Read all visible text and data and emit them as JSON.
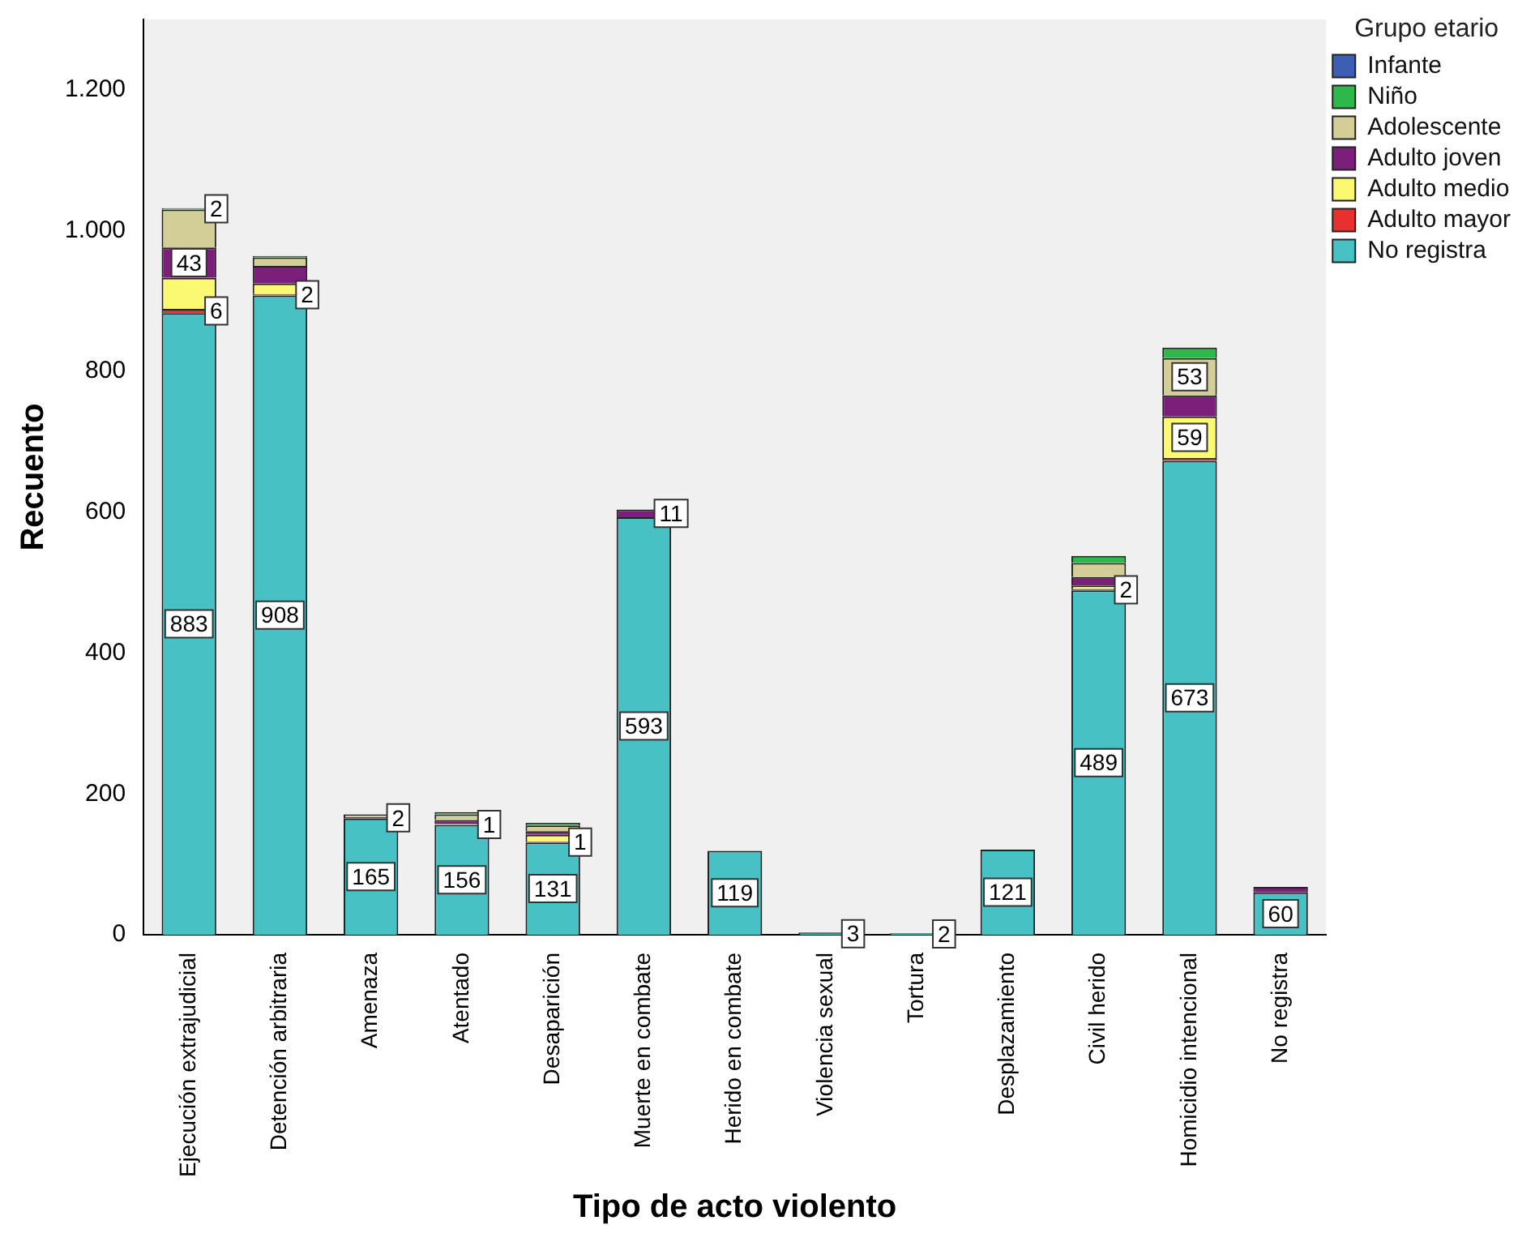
{
  "chart_data": {
    "type": "bar",
    "stacked": true,
    "xlabel": "Tipo de acto violento",
    "ylabel": "Recuento",
    "legend_title": "Grupo etario",
    "legend": "top right",
    "grid": false,
    "categories": [
      "Ejecución extrajudicial",
      "Detención arbitraria",
      "Amenaza",
      "Atentado",
      "Desaparición",
      "Muerte en combate",
      "Herido en combate",
      "Violencia sexual",
      "Tortura",
      "Desplazamiento",
      "Civil herido",
      "Homicidio intencional",
      "No registra"
    ],
    "ylim": [
      0,
      1300
    ],
    "yticks": [
      0,
      200,
      400,
      600,
      800,
      {
        "value": 1000,
        "label": "1.000"
      },
      {
        "value": 1200,
        "label": "1.200"
      }
    ],
    "series": [
      {
        "name": "No registra",
        "color": "#47c1c4",
        "values": [
          883,
          908,
          165,
          156,
          131,
          593,
          119,
          3,
          2,
          121,
          489,
          673,
          60
        ],
        "value_labels": [
          "883",
          "908",
          "165",
          "156",
          "131",
          "593",
          "119",
          "3",
          "2",
          "121",
          "489",
          "673",
          "60"
        ]
      },
      {
        "name": "Adulto mayor",
        "color": "#e8302f",
        "values": [
          6,
          2,
          0,
          0,
          1,
          0,
          0,
          0,
          0,
          0,
          2,
          4,
          0
        ],
        "value_labels": [
          "6",
          "2",
          null,
          null,
          "1",
          null,
          null,
          null,
          null,
          null,
          "2",
          null,
          null
        ]
      },
      {
        "name": "Adulto medio",
        "color": "#fbf871",
        "values": [
          44,
          15,
          0,
          1,
          10,
          0,
          0,
          0,
          0,
          0,
          5,
          59,
          0
        ],
        "value_labels": [
          null,
          null,
          null,
          "1",
          null,
          null,
          null,
          null,
          null,
          null,
          null,
          "59",
          null
        ]
      },
      {
        "name": "Adulto joven",
        "color": "#7b1f7a",
        "values": [
          43,
          25,
          2,
          6,
          5,
          11,
          0,
          0,
          0,
          0,
          12,
          30,
          8
        ],
        "value_labels": [
          "43",
          null,
          "2",
          null,
          null,
          "11",
          null,
          null,
          null,
          null,
          null,
          null,
          null
        ]
      },
      {
        "name": "Adolescente",
        "color": "#d3ce97",
        "values": [
          54,
          12,
          4,
          8,
          8,
          0,
          0,
          0,
          0,
          0,
          20,
          53,
          0
        ],
        "value_labels": [
          null,
          null,
          null,
          null,
          null,
          null,
          null,
          null,
          null,
          null,
          null,
          "53",
          null
        ]
      },
      {
        "name": "Niño",
        "color": "#2eb84c",
        "values": [
          2,
          2,
          0,
          3,
          4,
          0,
          0,
          0,
          0,
          0,
          10,
          15,
          0
        ],
        "value_labels": [
          "2",
          null,
          null,
          null,
          null,
          null,
          null,
          null,
          null,
          null,
          null,
          null,
          null
        ]
      },
      {
        "name": "Infante",
        "color": "#3c5fb4",
        "values": [
          0,
          0,
          0,
          0,
          0,
          0,
          0,
          0,
          0,
          0,
          0,
          0,
          0
        ]
      }
    ]
  }
}
